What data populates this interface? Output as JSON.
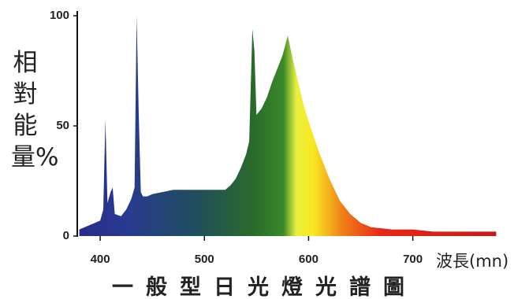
{
  "chart_data": {
    "type": "area",
    "title": "一般型日光燈光譜圖",
    "y_label": "相對能量%",
    "x_label": "波長(mn)",
    "x": [
      380,
      390,
      400,
      403,
      405,
      407,
      410,
      412,
      414,
      420,
      425,
      430,
      433,
      435,
      437,
      439,
      441,
      445,
      450,
      460,
      470,
      480,
      500,
      510,
      520,
      525,
      530,
      535,
      540,
      543,
      546,
      548,
      550,
      555,
      560,
      565,
      570,
      575,
      580,
      585,
      590,
      595,
      600,
      605,
      610,
      615,
      620,
      625,
      630,
      640,
      650,
      660,
      680,
      700,
      720,
      750,
      780
    ],
    "values": [
      3,
      5,
      7,
      12,
      53,
      15,
      20,
      22,
      10,
      9,
      12,
      17,
      22,
      100,
      55,
      20,
      18,
      18,
      19,
      20,
      21,
      21,
      21,
      21,
      21,
      23,
      26,
      31,
      37,
      43,
      94,
      84,
      55,
      58,
      63,
      70,
      76,
      82,
      91,
      80,
      70,
      60,
      52,
      45,
      38,
      32,
      26,
      21,
      16,
      10,
      6,
      4,
      3,
      3,
      2,
      2,
      2
    ],
    "xlim": [
      378,
      782
    ],
    "ylim": [
      0,
      100
    ],
    "xticks": [
      400,
      500,
      600,
      700
    ],
    "yticks": [
      0,
      50,
      100
    ]
  }
}
